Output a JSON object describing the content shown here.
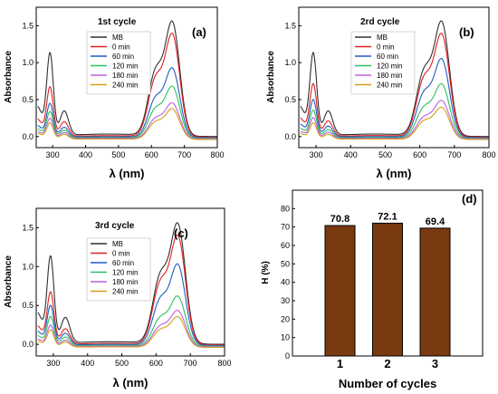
{
  "chart_data": [
    {
      "type": "line",
      "panel_label": "(a)",
      "annotation": "1st cycle",
      "xlabel": "λ (nm)",
      "ylabel": "Absorbance",
      "xlim": [
        250,
        800
      ],
      "ylim": [
        -0.15,
        1.75
      ],
      "xticks": [
        300,
        400,
        500,
        600,
        700,
        800
      ],
      "yticks": [
        0.0,
        0.5,
        1.0,
        1.5
      ],
      "legend_position": "upper-center",
      "series": [
        {
          "name": "MB",
          "color": "#303030",
          "peak": 1.5,
          "uv": 1.1
        },
        {
          "name": "0 min",
          "color": "#e02020",
          "peak": 1.35,
          "uv": 0.66
        },
        {
          "name": "60 min",
          "color": "#1f5fbf",
          "peak": 0.91,
          "uv": 0.45
        },
        {
          "name": "120 min",
          "color": "#2fbf5f",
          "peak": 0.68,
          "uv": 0.35
        },
        {
          "name": "180 min",
          "color": "#bf5fdf",
          "peak": 0.47,
          "uv": 0.27
        },
        {
          "name": "240 min",
          "color": "#d4a017",
          "peak": 0.4,
          "uv": 0.22
        }
      ]
    },
    {
      "type": "line",
      "panel_label": "(b)",
      "annotation": "2rd cycle",
      "xlabel": "λ (nm)",
      "ylabel": "Absorbance",
      "xlim": [
        250,
        800
      ],
      "ylim": [
        -0.15,
        1.75
      ],
      "xticks": [
        300,
        400,
        500,
        600,
        700,
        800
      ],
      "yticks": [
        0.0,
        0.5,
        1.0,
        1.5
      ],
      "legend_position": "upper-center",
      "series": [
        {
          "name": "MB",
          "color": "#303030",
          "peak": 1.5,
          "uv": 1.1
        },
        {
          "name": "0 min",
          "color": "#e02020",
          "peak": 1.35,
          "uv": 0.7
        },
        {
          "name": "60 min",
          "color": "#1f5fbf",
          "peak": 1.03,
          "uv": 0.5
        },
        {
          "name": "120 min",
          "color": "#2fbf5f",
          "peak": 0.71,
          "uv": 0.37
        },
        {
          "name": "180 min",
          "color": "#bf5fdf",
          "peak": 0.5,
          "uv": 0.28
        },
        {
          "name": "240 min",
          "color": "#d4a017",
          "peak": 0.42,
          "uv": 0.22
        }
      ]
    },
    {
      "type": "line",
      "panel_label": "(c)",
      "annotation": "3rd cycle",
      "xlabel": "λ (nm)",
      "ylabel": "Absorbance",
      "xlim": [
        250,
        800
      ],
      "ylim": [
        -0.15,
        1.75
      ],
      "xticks": [
        300,
        400,
        500,
        600,
        700,
        800
      ],
      "yticks": [
        0.0,
        0.5,
        1.0,
        1.5
      ],
      "legend_position": "upper-center",
      "series": [
        {
          "name": "MB",
          "color": "#303030",
          "peak": 1.5,
          "uv": 1.1
        },
        {
          "name": "0 min",
          "color": "#e02020",
          "peak": 1.36,
          "uv": 0.66
        },
        {
          "name": "60 min",
          "color": "#1f5fbf",
          "peak": 1.01,
          "uv": 0.5
        },
        {
          "name": "120 min",
          "color": "#2fbf5f",
          "peak": 0.62,
          "uv": 0.37
        },
        {
          "name": "180 min",
          "color": "#bf5fdf",
          "peak": 0.45,
          "uv": 0.27
        },
        {
          "name": "240 min",
          "color": "#d4a017",
          "peak": 0.38,
          "uv": 0.22
        }
      ]
    },
    {
      "type": "bar",
      "panel_label": "(d)",
      "xlabel": "Number of cycles",
      "ylabel": "H (%)",
      "categories": [
        "1",
        "2",
        "3"
      ],
      "values": [
        70.8,
        72.1,
        69.4
      ],
      "value_labels": [
        "70.8",
        "72.1",
        "69.4"
      ],
      "ylim": [
        0,
        90
      ],
      "yticks": [
        0,
        10,
        20,
        30,
        40,
        50,
        60,
        70,
        80
      ],
      "bar_color": "#7a3a10"
    }
  ]
}
